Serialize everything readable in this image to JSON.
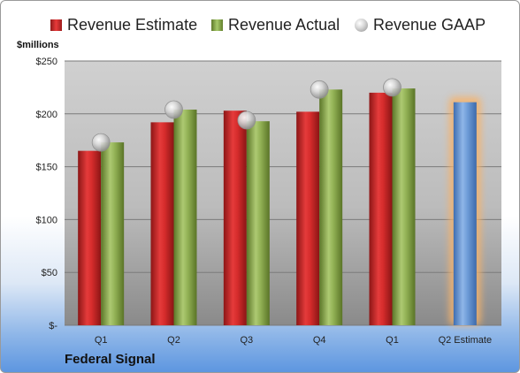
{
  "legend": {
    "estimate_label": "Revenue Estimate",
    "actual_label": "Revenue Actual",
    "gaap_label": "Revenue GAAP"
  },
  "units_label": "$millions",
  "company_label": "Federal Signal",
  "colors": {
    "estimate": "#d42a2a",
    "actual": "#8fb052",
    "gaap": "#bdbdbd",
    "projected": "#6c9bd6",
    "projected_glow": "#f6b26b"
  },
  "chart_data": {
    "type": "bar",
    "categories": [
      "Q1",
      "Q2",
      "Q3",
      "Q4",
      "Q1",
      "Q2 Estimate"
    ],
    "ylim": [
      0,
      250
    ],
    "yticks": [
      0,
      50,
      100,
      150,
      200,
      250
    ],
    "ytick_labels": [
      "$-",
      "$50",
      "$100",
      "$150",
      "$200",
      "$250"
    ],
    "grid": true,
    "legend_position": "top",
    "series": [
      {
        "name": "Revenue Estimate",
        "values": [
          165,
          192,
          203,
          202,
          220,
          211
        ]
      },
      {
        "name": "Revenue Actual",
        "values": [
          173,
          204,
          193,
          223,
          224,
          null
        ]
      },
      {
        "name": "Revenue GAAP",
        "values": [
          173,
          204,
          194,
          223,
          225,
          null
        ]
      }
    ]
  }
}
